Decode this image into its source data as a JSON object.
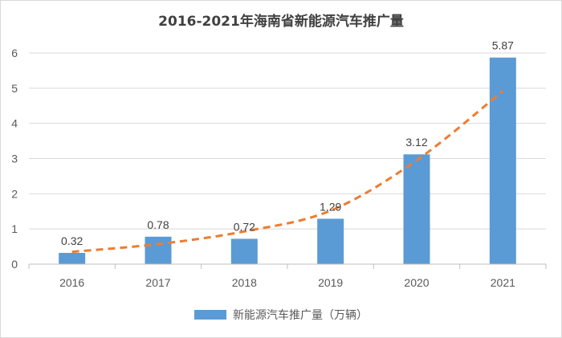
{
  "chart_data": {
    "type": "bar",
    "title": "2016-2021年海南省新能源汽车推广量",
    "categories": [
      "2016",
      "2017",
      "2018",
      "2019",
      "2020",
      "2021"
    ],
    "series": [
      {
        "name": "新能源汽车推广量（万辆）",
        "values": [
          0.32,
          0.78,
          0.72,
          1.29,
          3.12,
          5.87
        ],
        "data_labels": [
          "0.32",
          "0.78",
          "0.72",
          "1.29",
          "3.12",
          "5.87"
        ]
      }
    ],
    "trendline": {
      "type": "exponential",
      "values": [
        0.35,
        0.57,
        0.93,
        1.52,
        2.95,
        4.92
      ]
    },
    "ylim": [
      0,
      6
    ],
    "yticks": [
      "0",
      "1",
      "2",
      "3",
      "4",
      "5",
      "6"
    ],
    "grid": true,
    "legend_position": "bottom",
    "colors": {
      "bar": "#5b9bd5",
      "trend": "#ed7d31",
      "grid": "#d9d9d9"
    }
  }
}
